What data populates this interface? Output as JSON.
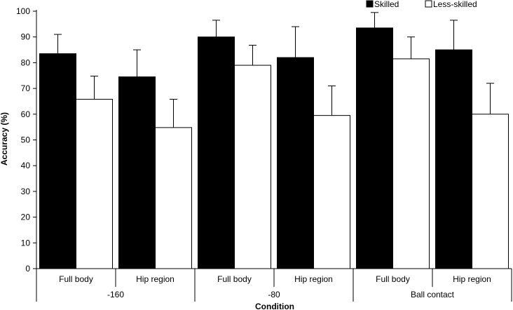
{
  "chart_data": {
    "type": "bar",
    "title": "",
    "xlabel": "Condition",
    "ylabel": "Accuracy (%)",
    "ylim": [
      0,
      100
    ],
    "ytick_step": 10,
    "grid": false,
    "legend_position": "top-right",
    "groups": [
      {
        "label": "-160",
        "categories": [
          "Full body",
          "Hip region"
        ]
      },
      {
        "label": "-80",
        "categories": [
          "Full body",
          "Hip region"
        ]
      },
      {
        "label": "Ball contact",
        "categories": [
          "Full body",
          "Hip region"
        ]
      }
    ],
    "categories": [
      "Full body",
      "Hip region",
      "Full body",
      "Hip region",
      "Full body",
      "Hip region"
    ],
    "series": [
      {
        "name": "Skilled",
        "color": "#000000",
        "values": [
          83.5,
          74.5,
          90.0,
          82.0,
          93.5,
          85.0
        ],
        "error": [
          7.5,
          10.5,
          6.5,
          12.0,
          6.0,
          11.5
        ]
      },
      {
        "name": "Less-skilled",
        "color": "#ffffff",
        "values": [
          65.8,
          54.8,
          79.0,
          59.5,
          81.5,
          60.0
        ],
        "error": [
          9.0,
          11.0,
          7.8,
          11.5,
          8.5,
          12.0
        ]
      }
    ]
  }
}
